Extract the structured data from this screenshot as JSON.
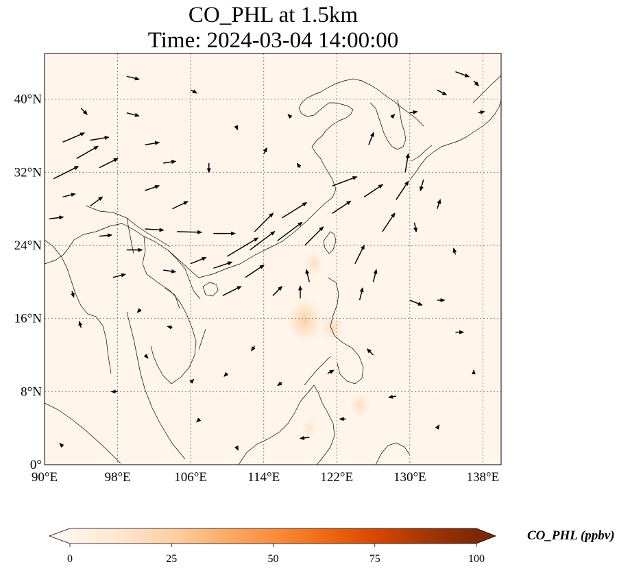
{
  "title": {
    "line1": "CO_PHL at 1.5km",
    "line2": "Time: 2024-03-04 14:00:00"
  },
  "map": {
    "lon_range": [
      90,
      140
    ],
    "lat_range": [
      0,
      45
    ],
    "lon_ticks": [
      {
        "value": 90,
        "label": "90°E"
      },
      {
        "value": 98,
        "label": "98°E"
      },
      {
        "value": 106,
        "label": "106°E"
      },
      {
        "value": 114,
        "label": "114°E"
      },
      {
        "value": 122,
        "label": "122°E"
      },
      {
        "value": 130,
        "label": "130°E"
      },
      {
        "value": 138,
        "label": "138°E"
      }
    ],
    "lat_ticks": [
      {
        "value": 0,
        "label": "0°"
      },
      {
        "value": 8,
        "label": "8°N"
      },
      {
        "value": 16,
        "label": "16°N"
      },
      {
        "value": 24,
        "label": "24°N"
      },
      {
        "value": 32,
        "label": "32°N"
      },
      {
        "value": 40,
        "label": "40°N"
      }
    ],
    "gridlines": true,
    "background_color": "#fff5eb",
    "concentration_patches": [
      {
        "lon": 118.5,
        "lat": 15.8,
        "value": 12
      },
      {
        "lon": 121.5,
        "lat": 15.0,
        "value": 6
      },
      {
        "lon": 119.5,
        "lat": 22.0,
        "value": 5
      },
      {
        "lon": 124.5,
        "lat": 6.5,
        "value": 5
      },
      {
        "lon": 119.0,
        "lat": 4.0,
        "value": 3
      }
    ],
    "wind_vectors": [
      {
        "lon": 91,
        "lat": 31.3,
        "u": 4,
        "v": 2
      },
      {
        "lon": 92,
        "lat": 35.3,
        "u": 3.5,
        "v": 1.5
      },
      {
        "lon": 93.5,
        "lat": 33.5,
        "u": 3.5,
        "v": 2
      },
      {
        "lon": 95,
        "lat": 35.5,
        "u": 3,
        "v": 0.5
      },
      {
        "lon": 96,
        "lat": 32.5,
        "u": 3,
        "v": 1.5
      },
      {
        "lon": 92,
        "lat": 29.3,
        "u": 2,
        "v": 0.5
      },
      {
        "lon": 95,
        "lat": 28.3,
        "u": 2,
        "v": 1.5
      },
      {
        "lon": 90.5,
        "lat": 26.9,
        "u": 2.3,
        "v": 0.3
      },
      {
        "lon": 99,
        "lat": 38.5,
        "u": 2,
        "v": -0.5
      },
      {
        "lon": 101,
        "lat": 35,
        "u": 2.3,
        "v": 0.4
      },
      {
        "lon": 103,
        "lat": 33,
        "u": 2,
        "v": 0.3
      },
      {
        "lon": 104,
        "lat": 28,
        "u": 2.5,
        "v": 1.2
      },
      {
        "lon": 101,
        "lat": 30,
        "u": 2.3,
        "v": 0.8
      },
      {
        "lon": 101,
        "lat": 25.8,
        "u": 3,
        "v": -0.2
      },
      {
        "lon": 104.5,
        "lat": 25.5,
        "u": 4,
        "v": -0.1
      },
      {
        "lon": 108.5,
        "lat": 25.3,
        "u": 3.5,
        "v": 0
      },
      {
        "lon": 110,
        "lat": 22.8,
        "u": 5,
        "v": 3
      },
      {
        "lon": 112.5,
        "lat": 23.5,
        "u": 4,
        "v": 3
      },
      {
        "lon": 113,
        "lat": 25.5,
        "u": 3,
        "v": 3
      },
      {
        "lon": 115.5,
        "lat": 24.5,
        "u": 4,
        "v": 3
      },
      {
        "lon": 116,
        "lat": 27,
        "u": 4,
        "v": 2.5
      },
      {
        "lon": 118.5,
        "lat": 24,
        "u": 3,
        "v": 3
      },
      {
        "lon": 121.5,
        "lat": 27.5,
        "u": 3,
        "v": 2
      },
      {
        "lon": 121.5,
        "lat": 30.5,
        "u": 4,
        "v": 1.5
      },
      {
        "lon": 125,
        "lat": 29.3,
        "u": 3,
        "v": 2
      },
      {
        "lon": 127,
        "lat": 25.5,
        "u": 2,
        "v": 3
      },
      {
        "lon": 128.5,
        "lat": 29,
        "u": 2,
        "v": 3
      },
      {
        "lon": 124,
        "lat": 22,
        "u": 1.5,
        "v": 3
      },
      {
        "lon": 125.5,
        "lat": 35,
        "u": 0.8,
        "v": 2
      },
      {
        "lon": 129.5,
        "lat": 32,
        "u": 0.5,
        "v": 3
      },
      {
        "lon": 112,
        "lat": 20.5,
        "u": 3,
        "v": 2
      },
      {
        "lon": 109.5,
        "lat": 18.5,
        "u": 3,
        "v": 1.5
      },
      {
        "lon": 108.5,
        "lat": 21.5,
        "u": 3,
        "v": 1
      },
      {
        "lon": 106,
        "lat": 22,
        "u": 2.5,
        "v": 1
      },
      {
        "lon": 103,
        "lat": 21.3,
        "u": 2,
        "v": -0.3
      },
      {
        "lon": 99,
        "lat": 23.5,
        "u": 2.5,
        "v": 0
      },
      {
        "lon": 97.5,
        "lat": 20.5,
        "u": 2,
        "v": 0.5
      },
      {
        "lon": 96,
        "lat": 25,
        "u": 2,
        "v": 0.2
      },
      {
        "lon": 119,
        "lat": 20,
        "u": -0.5,
        "v": 2
      },
      {
        "lon": 118,
        "lat": 18.2,
        "u": 0,
        "v": 2
      },
      {
        "lon": 115,
        "lat": 18.5,
        "u": 1.5,
        "v": 1.5
      },
      {
        "lon": 124.5,
        "lat": 18,
        "u": 0.5,
        "v": 2
      },
      {
        "lon": 126,
        "lat": 20,
        "u": 0.5,
        "v": 2
      },
      {
        "lon": 130,
        "lat": 18,
        "u": 2,
        "v": -0.8
      },
      {
        "lon": 133,
        "lat": 18,
        "u": 1.2,
        "v": 0
      },
      {
        "lon": 135,
        "lat": 14.5,
        "u": 1.3,
        "v": 0
      },
      {
        "lon": 131.5,
        "lat": 31.2,
        "u": -0.5,
        "v": -1.8
      },
      {
        "lon": 130.5,
        "lat": 26.5,
        "u": 0.3,
        "v": -1.5
      },
      {
        "lon": 133,
        "lat": 28,
        "u": 0.5,
        "v": 1.5
      },
      {
        "lon": 135,
        "lat": 43,
        "u": 2.2,
        "v": -0.8
      },
      {
        "lon": 133,
        "lat": 41,
        "u": 1.5,
        "v": -0.8
      },
      {
        "lon": 128,
        "lat": 38,
        "u": 0.5,
        "v": 0.5
      },
      {
        "lon": 118,
        "lat": 32.5,
        "u": -0.5,
        "v": 0.7
      },
      {
        "lon": 126,
        "lat": 12,
        "u": -1,
        "v": 1
      },
      {
        "lon": 123,
        "lat": 5,
        "u": -1,
        "v": 0
      },
      {
        "lon": 119,
        "lat": 3,
        "u": -1.5,
        "v": -0.2
      },
      {
        "lon": 128.5,
        "lat": 7.5,
        "u": -1.2,
        "v": -0.2
      },
      {
        "lon": 98,
        "lat": 8,
        "u": -1,
        "v": 0
      },
      {
        "lon": 92,
        "lat": 2,
        "u": -0.5,
        "v": 0.5
      },
      {
        "lon": 110,
        "lat": 10,
        "u": -0.5,
        "v": -0.5
      },
      {
        "lon": 104,
        "lat": 15,
        "u": -0.8,
        "v": 0.2
      },
      {
        "lon": 94,
        "lat": 15,
        "u": -0.3,
        "v": 1
      },
      {
        "lon": 101,
        "lat": 12,
        "u": 0.5,
        "v": -0.5
      },
      {
        "lon": 107,
        "lat": 5,
        "u": -0.5,
        "v": -0.5
      },
      {
        "lon": 113,
        "lat": 13,
        "u": -0.5,
        "v": -0.8
      },
      {
        "lon": 116,
        "lat": 9,
        "u": -0.7,
        "v": -0.5
      },
      {
        "lon": 111,
        "lat": 2,
        "u": 0.3,
        "v": -0.6
      },
      {
        "lon": 99,
        "lat": 42.5,
        "u": 2,
        "v": -0.5
      },
      {
        "lon": 106,
        "lat": 41,
        "u": 1,
        "v": -0.5
      },
      {
        "lon": 111,
        "lat": 37,
        "u": 0.2,
        "v": -0.5
      },
      {
        "lon": 114,
        "lat": 34,
        "u": 0.5,
        "v": 1
      },
      {
        "lon": 108,
        "lat": 33,
        "u": 0,
        "v": -1.5
      },
      {
        "lon": 117,
        "lat": 38,
        "u": -0.5,
        "v": 0.5
      },
      {
        "lon": 94,
        "lat": 39,
        "u": 1,
        "v": -1
      },
      {
        "lon": 93,
        "lat": 19,
        "u": 0.3,
        "v": -1
      },
      {
        "lon": 100.5,
        "lat": 17,
        "u": -0.5,
        "v": -0.5
      },
      {
        "lon": 106,
        "lat": 9,
        "u": 0.5,
        "v": 0.5
      },
      {
        "lon": 121,
        "lat": 10,
        "u": 1,
        "v": 0.5
      },
      {
        "lon": 130,
        "lat": 38.5,
        "u": 1.2,
        "v": 0.2
      },
      {
        "lon": 137.5,
        "lat": 38.5,
        "u": 1,
        "v": 0.2
      },
      {
        "lon": 137,
        "lat": 42,
        "u": 0.8,
        "v": -0.8
      },
      {
        "lon": 135,
        "lat": 23,
        "u": -0.3,
        "v": 1
      },
      {
        "lon": 137,
        "lat": 10,
        "u": 0,
        "v": 0.5
      },
      {
        "lon": 133,
        "lat": 4,
        "u": 0.3,
        "v": 0.5
      }
    ]
  },
  "colorbar": {
    "label": "CO_PHL (ppbv)",
    "ticks": [
      {
        "value": 0,
        "label": "0"
      },
      {
        "value": 25,
        "label": "25"
      },
      {
        "value": 50,
        "label": "50"
      },
      {
        "value": 75,
        "label": "75"
      },
      {
        "value": 100,
        "label": "100"
      }
    ],
    "range": [
      0,
      100
    ],
    "colors": [
      "#fff5eb",
      "#fee6ce",
      "#fdd0a2",
      "#fdae6b",
      "#fd8d3c",
      "#f16913",
      "#d94801",
      "#a63603",
      "#7f2704"
    ]
  }
}
